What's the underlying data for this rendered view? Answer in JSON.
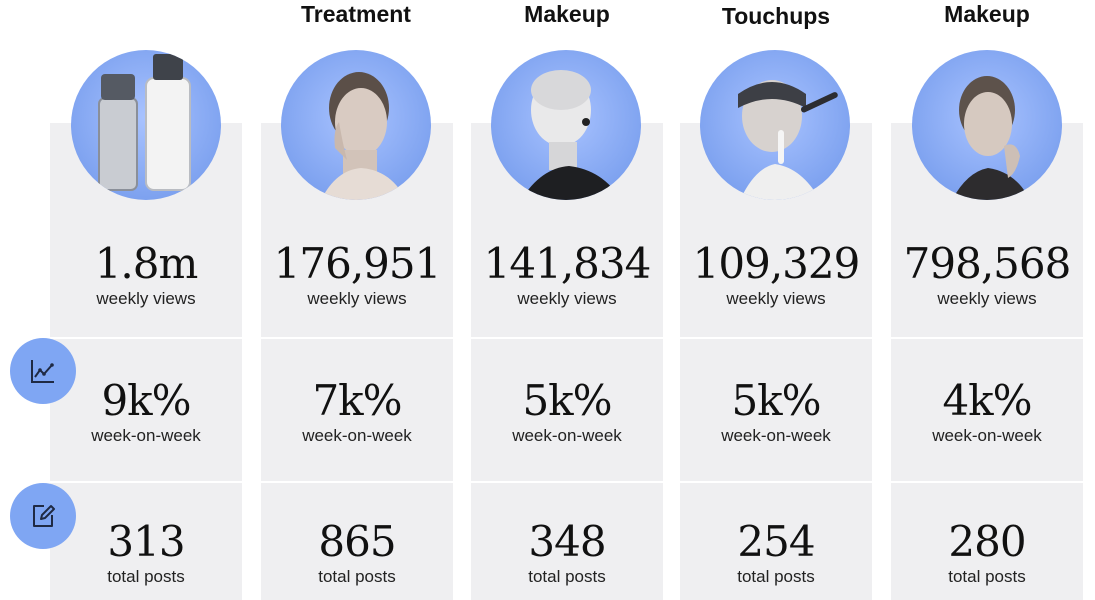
{
  "columns": [
    {
      "title": "",
      "views": "1.8m",
      "views_label": "weekly views",
      "growth": "9k%",
      "growth_label": "week-on-week",
      "posts": "313",
      "posts_label": "total posts",
      "image": "bottles-icon"
    },
    {
      "title": "Treatment",
      "views": "176,951",
      "views_label": "weekly views",
      "growth": "7k%",
      "growth_label": "week-on-week",
      "posts": "865",
      "posts_label": "total posts",
      "image": "woman-portrait"
    },
    {
      "title": "Makeup",
      "views": "141,834",
      "views_label": "weekly views",
      "growth": "5k%",
      "growth_label": "week-on-week",
      "posts": "348",
      "posts_label": "total posts",
      "image": "shaved-head-portrait"
    },
    {
      "title": "Touchups",
      "views": "109,329",
      "views_label": "weekly views",
      "growth": "5k%",
      "growth_label": "week-on-week",
      "posts": "254",
      "posts_label": "total posts",
      "image": "makeup-application-portrait"
    },
    {
      "title": "Makeup",
      "views": "798,568",
      "views_label": "weekly views",
      "growth": "4k%",
      "growth_label": "week-on-week",
      "posts": "280",
      "posts_label": "total posts",
      "image": "woman-hand-chin-portrait"
    }
  ],
  "side_icons": [
    "trend-chart-icon",
    "edit-note-icon"
  ],
  "colors": {
    "accent": "#7fa6f3",
    "card_bg": "#efeff1"
  }
}
